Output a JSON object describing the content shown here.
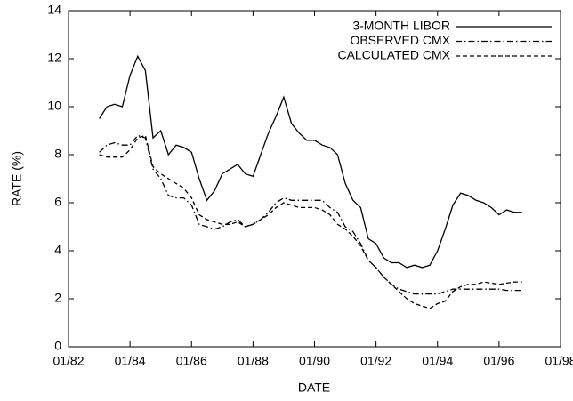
{
  "chart_data": {
    "type": "line",
    "xlabel": "DATE",
    "ylabel": "RATE (%)",
    "x": [
      1983,
      1983.25,
      1983.5,
      1983.75,
      1984,
      1984.25,
      1984.5,
      1984.75,
      1985,
      1985.25,
      1985.5,
      1985.75,
      1986,
      1986.25,
      1986.5,
      1986.75,
      1987,
      1987.25,
      1987.5,
      1987.75,
      1988,
      1988.25,
      1988.5,
      1988.75,
      1989,
      1989.25,
      1989.5,
      1989.75,
      1990,
      1990.25,
      1990.5,
      1990.75,
      1991,
      1991.25,
      1991.5,
      1991.75,
      1992,
      1992.25,
      1992.5,
      1992.75,
      1993,
      1993.25,
      1993.5,
      1993.75,
      1994,
      1994.25,
      1994.5,
      1994.75,
      1995,
      1995.25,
      1995.5,
      1995.75,
      1996,
      1996.25,
      1996.5,
      1996.75
    ],
    "series": [
      {
        "name": "3-MONTH LIBOR",
        "color": "#000000",
        "dash": "solid",
        "values": [
          9.5,
          10.0,
          10.1,
          10.0,
          11.3,
          12.1,
          11.5,
          8.7,
          9.0,
          8.0,
          8.4,
          8.3,
          8.1,
          7.0,
          6.1,
          6.5,
          7.2,
          7.4,
          7.6,
          7.2,
          7.1,
          8.0,
          8.9,
          9.6,
          10.4,
          9.3,
          8.9,
          8.6,
          8.6,
          8.4,
          8.3,
          8.0,
          6.8,
          6.1,
          5.8,
          4.5,
          4.3,
          3.7,
          3.5,
          3.5,
          3.3,
          3.4,
          3.3,
          3.4,
          4.0,
          4.9,
          5.9,
          6.4,
          6.3,
          6.1,
          6.0,
          5.8,
          5.5,
          5.7,
          5.6,
          5.6
        ]
      },
      {
        "name": "OBSERVED CMX",
        "color": "#000000",
        "dash": "dashdot",
        "values": [
          8.1,
          8.4,
          8.5,
          8.4,
          8.4,
          8.8,
          8.7,
          7.4,
          7.0,
          6.3,
          6.2,
          6.2,
          5.9,
          5.1,
          5.0,
          4.9,
          5.0,
          5.2,
          5.3,
          5.0,
          5.1,
          5.3,
          5.6,
          6.0,
          6.2,
          6.1,
          6.1,
          6.1,
          6.1,
          6.1,
          5.8,
          5.6,
          5.0,
          4.8,
          4.3,
          3.6,
          3.3,
          2.9,
          2.6,
          2.4,
          2.3,
          2.2,
          2.2,
          2.2,
          2.2,
          2.3,
          2.4,
          2.4,
          2.4,
          2.4,
          2.4,
          2.4,
          2.4,
          2.35,
          2.35,
          2.35
        ]
      },
      {
        "name": "CALCULATED CMX",
        "color": "#000000",
        "dash": "dashed",
        "values": [
          8.0,
          7.9,
          7.9,
          7.9,
          8.2,
          8.7,
          8.8,
          7.5,
          7.2,
          7.0,
          6.8,
          6.6,
          6.2,
          5.5,
          5.3,
          5.2,
          5.1,
          5.1,
          5.2,
          5.0,
          5.1,
          5.3,
          5.5,
          5.8,
          6.0,
          5.9,
          5.8,
          5.8,
          5.8,
          5.7,
          5.5,
          5.1,
          4.9,
          4.6,
          4.2,
          3.6,
          3.3,
          2.9,
          2.6,
          2.3,
          2.0,
          1.8,
          1.7,
          1.6,
          1.8,
          1.9,
          2.3,
          2.5,
          2.6,
          2.6,
          2.7,
          2.65,
          2.6,
          2.65,
          2.7,
          2.7
        ]
      }
    ],
    "xlim": [
      1982,
      1998
    ],
    "xticks": [
      {
        "value": 1982,
        "label": "01/82"
      },
      {
        "value": 1984,
        "label": "01/84"
      },
      {
        "value": 1986,
        "label": "01/86"
      },
      {
        "value": 1988,
        "label": "01/88"
      },
      {
        "value": 1990,
        "label": "01/90"
      },
      {
        "value": 1992,
        "label": "01/92"
      },
      {
        "value": 1994,
        "label": "01/94"
      },
      {
        "value": 1996,
        "label": "01/96"
      },
      {
        "value": 1998,
        "label": "01/98"
      }
    ],
    "ylim": [
      0,
      14
    ],
    "yticks": [
      0,
      2,
      4,
      6,
      8,
      10,
      12,
      14
    ],
    "grid": false,
    "legend": "upper right"
  }
}
